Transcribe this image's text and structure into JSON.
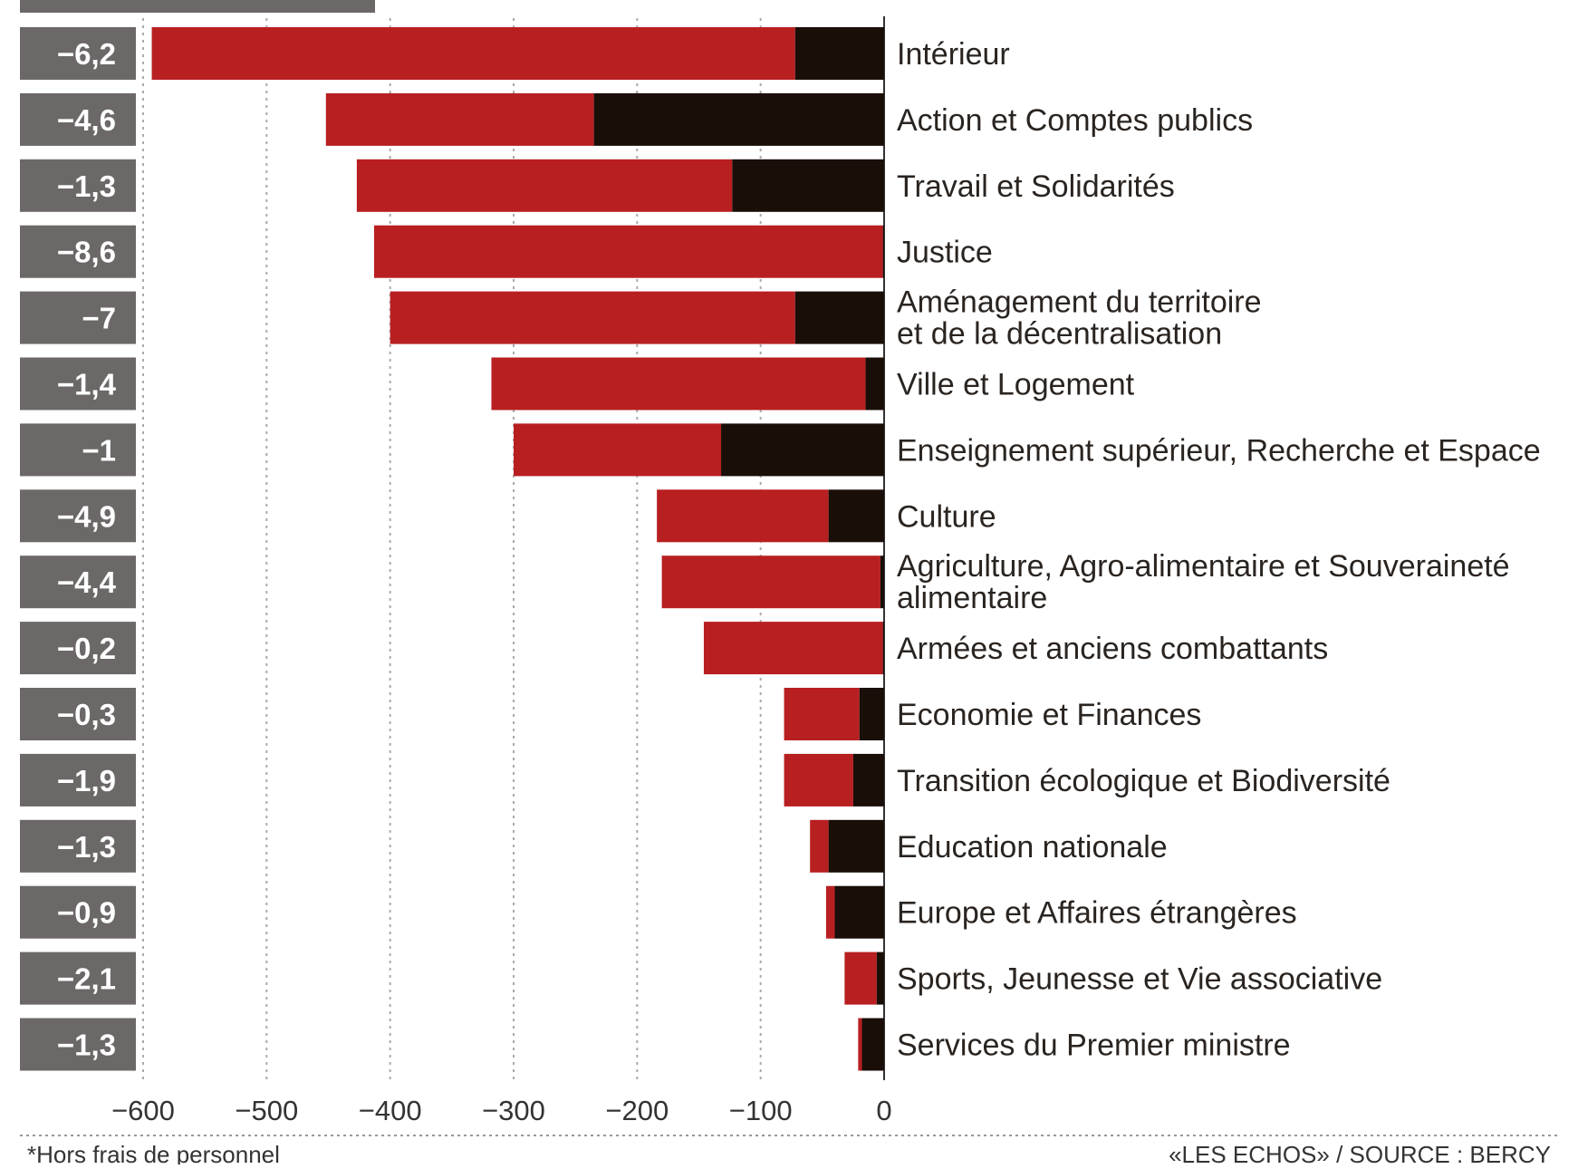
{
  "colors": {
    "red_segment": "#b81f21",
    "dark_segment": "#1a0e08",
    "pct_box": "#6b6867",
    "grid": "#aaaaaa"
  },
  "chart_data": {
    "type": "bar",
    "orientation": "horizontal",
    "stacked": true,
    "xlim": [
      -600,
      0
    ],
    "x_ticks": [
      -600,
      -500,
      -400,
      -300,
      -200,
      -100,
      0
    ],
    "x_tick_labels": [
      "-600",
      "-500",
      "-400",
      "-300",
      "-200",
      "-100",
      "0"
    ],
    "grid": true,
    "categories": [
      "Intérieur",
      "Action et Comptes publics",
      "Travail et Solidarités",
      "Justice",
      "Aménagement du territoire\net de la décentralisation",
      "Ville et Logement",
      "Enseignement supérieur, Recherche et Espace",
      "Culture",
      "Agriculture, Agro-alimentaire et Souveraineté\nalimentaire",
      "Armées et anciens combattants",
      "Economie et Finances",
      "Transition écologique et Biodiversité",
      "Education nationale",
      "Europe et Affaires étrangères",
      "Sports, Jeunesse et Vie associative",
      "Services du Premier ministre"
    ],
    "percent_labels": [
      "-6,2",
      "-4,6",
      "-1,3",
      "-8,6",
      "-7",
      "-1,4",
      "-1",
      "-4,9",
      "-4,4",
      "-0,2",
      "-0,3",
      "-1,9",
      "-1,3",
      "-0,9",
      "-2,1",
      "-1,3"
    ],
    "series": [
      {
        "values": [
          -72,
          -235,
          -123,
          -1,
          -72,
          -15,
          -132,
          -45,
          -3,
          -1,
          -20,
          -25,
          -45,
          -40,
          -6,
          -18
        ]
      },
      {
        "values": [
          -521,
          -217,
          -304,
          -412,
          -328,
          -303,
          -168,
          -139,
          -177,
          -145,
          -61,
          -56,
          -15,
          -7,
          -26,
          -3
        ]
      }
    ],
    "footnote": "*Hors frais de personnel",
    "source": "«LES ECHOS» / SOURCE : BERCY"
  }
}
